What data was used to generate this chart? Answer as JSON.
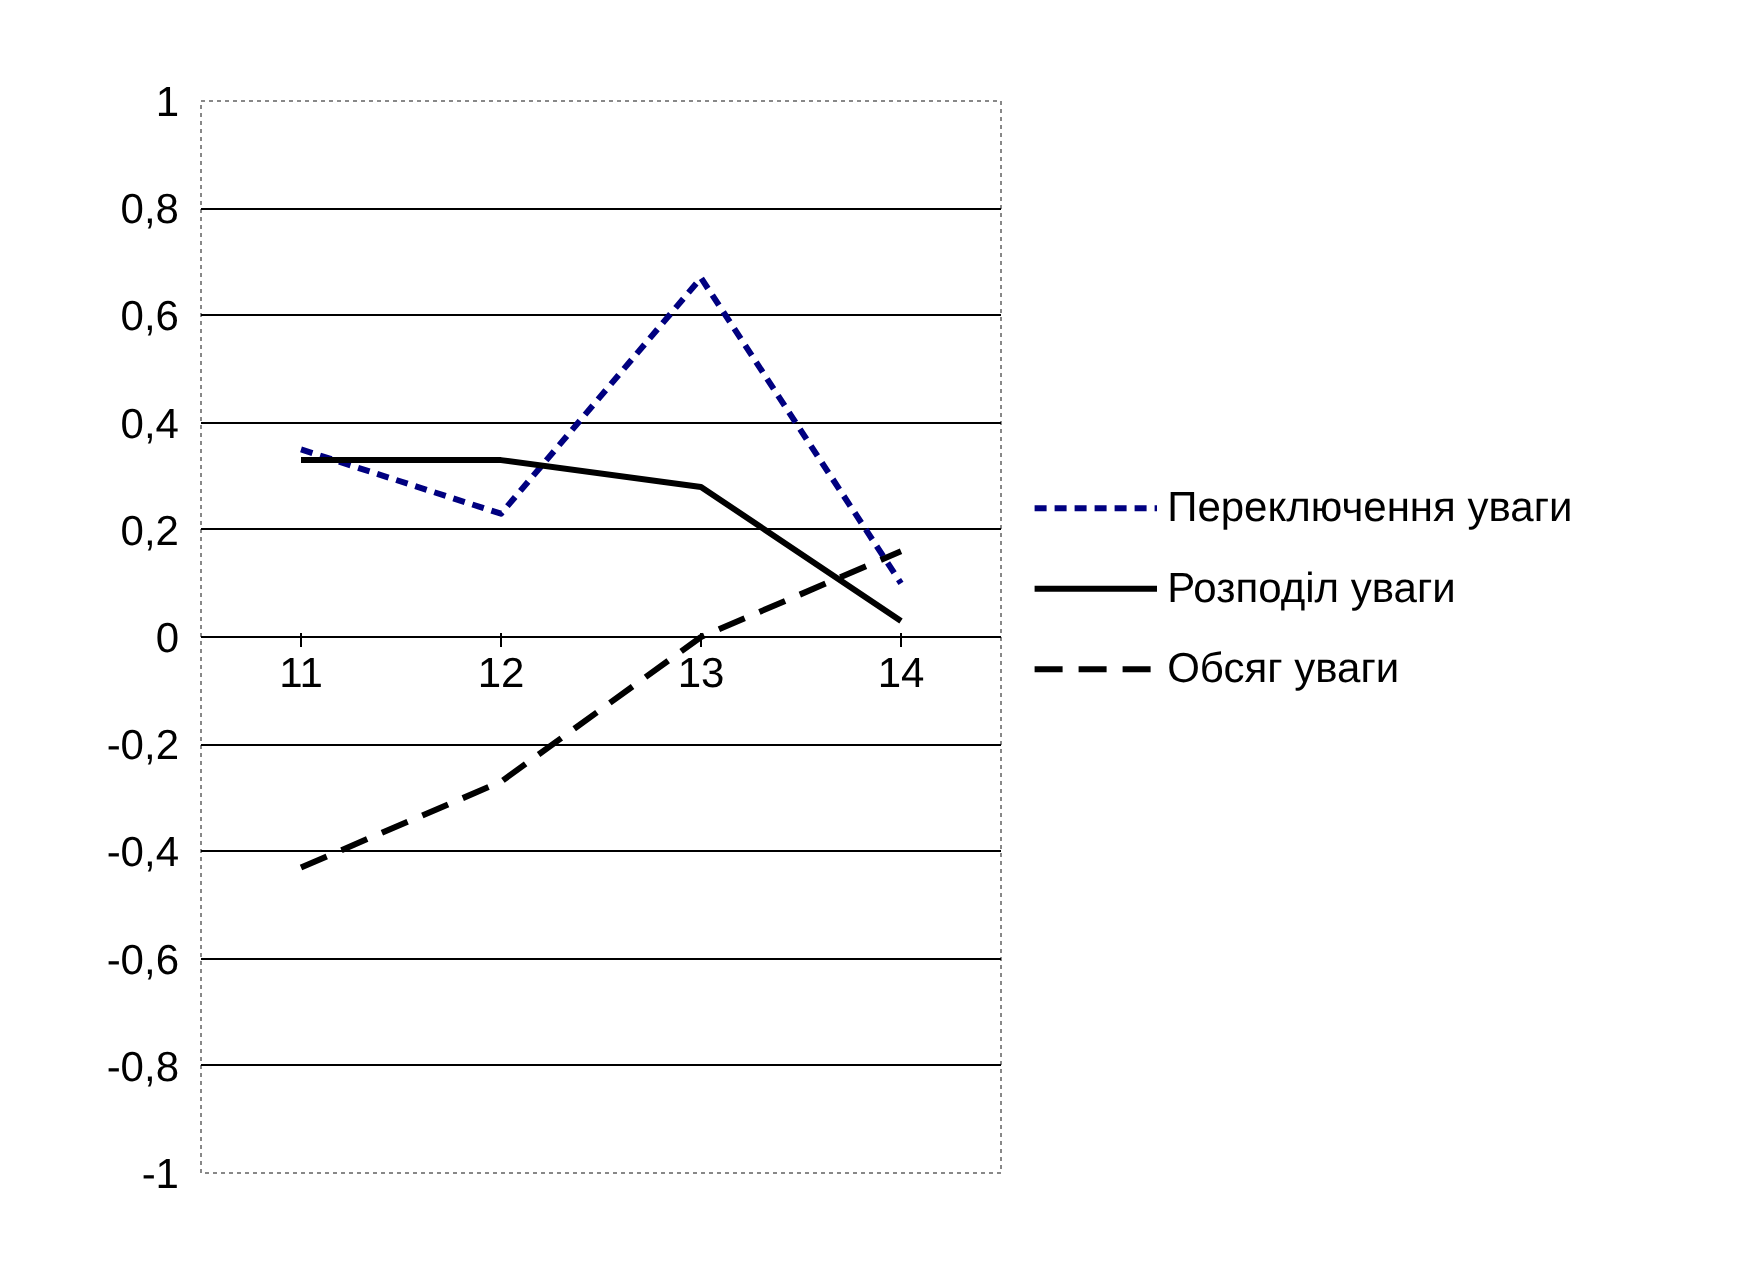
{
  "chart_data": {
    "type": "line",
    "categories": [
      "11",
      "12",
      "13",
      "14"
    ],
    "series": [
      {
        "name": "Переключення уваги",
        "color": "#000080",
        "line_style": "dotted",
        "values": [
          0.35,
          0.23,
          0.67,
          0.1
        ]
      },
      {
        "name": "Розподіл уваги",
        "color": "#000000",
        "line_style": "solid",
        "values": [
          0.33,
          0.33,
          0.28,
          0.03
        ]
      },
      {
        "name": "Обсяг уваги",
        "color": "#000000",
        "line_style": "dashed",
        "values": [
          -0.43,
          -0.27,
          0,
          0.16
        ]
      }
    ],
    "ylim": [
      -1,
      1
    ],
    "yticks": [
      {
        "value": -1,
        "label": "-1"
      },
      {
        "value": -0.8,
        "label": "-0,8"
      },
      {
        "value": -0.6,
        "label": "-0,6"
      },
      {
        "value": -0.4,
        "label": "-0,4"
      },
      {
        "value": -0.2,
        "label": "-0,2"
      },
      {
        "value": 0,
        "label": "0"
      },
      {
        "value": 0.2,
        "label": "0,2"
      },
      {
        "value": 0.4,
        "label": "0,4"
      },
      {
        "value": 0.6,
        "label": "0,6"
      },
      {
        "value": 0.8,
        "label": "0,8"
      },
      {
        "value": 1,
        "label": "1"
      }
    ],
    "grid": "y",
    "legend": "right",
    "marker": "none"
  }
}
